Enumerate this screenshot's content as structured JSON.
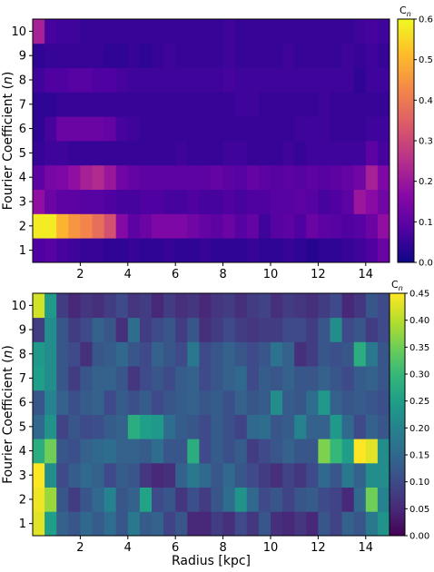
{
  "chart_data": [
    {
      "type": "heatmap",
      "title": "",
      "xlabel": "",
      "ylabel": "Fourier Coefficient (n)",
      "ylabel_parts": [
        "Fourier Coefficient (",
        "n",
        ")"
      ],
      "colorbar_label": "C",
      "colorbar_sub": "n",
      "colormap": "plasma",
      "xlim": [
        0,
        15
      ],
      "x_bin_width": 0.5,
      "x_tick_values": [
        2,
        4,
        6,
        8,
        10,
        12,
        14
      ],
      "x_tick_labels": [
        "2",
        "4",
        "6",
        "8",
        "10",
        "12",
        "14"
      ],
      "y_rows": [
        1,
        2,
        3,
        4,
        5,
        6,
        7,
        8,
        9,
        10
      ],
      "y_tick_labels": [
        "1",
        "2",
        "3",
        "4",
        "5",
        "6",
        "7",
        "8",
        "9",
        "10"
      ],
      "vmin": 0.0,
      "vmax": 0.6,
      "colorbar_ticks": [
        0.0,
        0.1,
        0.2,
        0.3,
        0.4,
        0.5,
        0.6
      ],
      "colorbar_tick_labels": [
        "0.0",
        "0.1",
        "0.2",
        "0.3",
        "0.4",
        "0.5",
        "0.6"
      ],
      "values": [
        [
          0.08,
          0.09,
          0.07,
          0.06,
          0.05,
          0.05,
          0.04,
          0.04,
          0.05,
          0.04,
          0.04,
          0.05,
          0.04,
          0.04,
          0.05,
          0.04,
          0.04,
          0.04,
          0.05,
          0.04,
          0.04,
          0.05,
          0.04,
          0.03,
          0.04,
          0.04,
          0.05,
          0.06,
          0.08,
          0.12
        ],
        [
          0.58,
          0.58,
          0.5,
          0.45,
          0.42,
          0.38,
          0.32,
          0.16,
          0.1,
          0.12,
          0.15,
          0.15,
          0.15,
          0.13,
          0.11,
          0.1,
          0.12,
          0.09,
          0.11,
          0.06,
          0.09,
          0.1,
          0.08,
          0.12,
          0.1,
          0.09,
          0.08,
          0.09,
          0.12,
          0.18
        ],
        [
          0.18,
          0.12,
          0.1,
          0.1,
          0.09,
          0.09,
          0.08,
          0.07,
          0.07,
          0.08,
          0.08,
          0.07,
          0.07,
          0.08,
          0.07,
          0.07,
          0.08,
          0.07,
          0.08,
          0.08,
          0.09,
          0.09,
          0.1,
          0.09,
          0.07,
          0.08,
          0.1,
          0.2,
          0.17,
          0.13
        ],
        [
          0.1,
          0.14,
          0.15,
          0.18,
          0.22,
          0.24,
          0.2,
          0.13,
          0.11,
          0.1,
          0.1,
          0.1,
          0.1,
          0.1,
          0.1,
          0.11,
          0.1,
          0.09,
          0.11,
          0.1,
          0.09,
          0.1,
          0.09,
          0.1,
          0.09,
          0.1,
          0.11,
          0.13,
          0.22,
          0.15
        ],
        [
          0.05,
          0.06,
          0.06,
          0.05,
          0.05,
          0.05,
          0.05,
          0.05,
          0.05,
          0.05,
          0.05,
          0.05,
          0.06,
          0.05,
          0.05,
          0.05,
          0.06,
          0.06,
          0.05,
          0.05,
          0.05,
          0.06,
          0.05,
          0.06,
          0.06,
          0.06,
          0.06,
          0.06,
          0.1,
          0.07
        ],
        [
          0.04,
          0.07,
          0.12,
          0.12,
          0.12,
          0.12,
          0.11,
          0.07,
          0.06,
          0.05,
          0.05,
          0.05,
          0.05,
          0.05,
          0.05,
          0.05,
          0.05,
          0.05,
          0.05,
          0.05,
          0.05,
          0.05,
          0.06,
          0.06,
          0.06,
          0.05,
          0.05,
          0.05,
          0.06,
          0.06
        ],
        [
          0.04,
          0.04,
          0.05,
          0.05,
          0.05,
          0.05,
          0.05,
          0.05,
          0.05,
          0.05,
          0.05,
          0.05,
          0.05,
          0.05,
          0.05,
          0.05,
          0.05,
          0.06,
          0.06,
          0.05,
          0.05,
          0.05,
          0.05,
          0.05,
          0.06,
          0.05,
          0.05,
          0.05,
          0.05,
          0.05
        ],
        [
          0.06,
          0.08,
          0.08,
          0.09,
          0.09,
          0.08,
          0.08,
          0.07,
          0.06,
          0.06,
          0.06,
          0.06,
          0.06,
          0.06,
          0.06,
          0.06,
          0.07,
          0.06,
          0.06,
          0.06,
          0.06,
          0.06,
          0.06,
          0.06,
          0.06,
          0.06,
          0.06,
          0.04,
          0.06,
          0.06
        ],
        [
          0.04,
          0.05,
          0.05,
          0.05,
          0.05,
          0.05,
          0.04,
          0.04,
          0.05,
          0.04,
          0.05,
          0.06,
          0.05,
          0.05,
          0.05,
          0.05,
          0.06,
          0.05,
          0.05,
          0.05,
          0.05,
          0.06,
          0.05,
          0.05,
          0.05,
          0.05,
          0.06,
          0.05,
          0.06,
          0.05
        ],
        [
          0.22,
          0.07,
          0.06,
          0.06,
          0.05,
          0.05,
          0.05,
          0.05,
          0.05,
          0.05,
          0.05,
          0.05,
          0.05,
          0.05,
          0.05,
          0.05,
          0.06,
          0.05,
          0.05,
          0.05,
          0.05,
          0.05,
          0.05,
          0.05,
          0.05,
          0.05,
          0.05,
          0.06,
          0.07,
          0.06
        ]
      ]
    },
    {
      "type": "heatmap",
      "title": "",
      "xlabel": "Radius [kpc]",
      "ylabel": "Fourier Coefficient (n)",
      "ylabel_parts": [
        "Fourier Coefficient (",
        "n",
        ")"
      ],
      "colorbar_label": "C",
      "colorbar_sub": "n",
      "colormap": "viridis",
      "xlim": [
        0,
        15
      ],
      "x_bin_width": 0.5,
      "x_tick_values": [
        2,
        4,
        6,
        8,
        10,
        12,
        14
      ],
      "x_tick_labels": [
        "2",
        "4",
        "6",
        "8",
        "10",
        "12",
        "14"
      ],
      "y_rows": [
        1,
        2,
        3,
        4,
        5,
        6,
        7,
        8,
        9,
        10
      ],
      "y_tick_labels": [
        "1",
        "2",
        "3",
        "4",
        "5",
        "6",
        "7",
        "8",
        "9",
        "10"
      ],
      "vmin": 0.0,
      "vmax": 0.45,
      "colorbar_ticks": [
        0.0,
        0.05,
        0.1,
        0.15,
        0.2,
        0.25,
        0.3,
        0.35,
        0.4,
        0.45
      ],
      "colorbar_tick_labels": [
        "0.00",
        "0.05",
        "0.10",
        "0.15",
        "0.20",
        "0.25",
        "0.30",
        "0.35",
        "0.40",
        "0.45"
      ],
      "values": [
        [
          0.43,
          0.25,
          0.14,
          0.12,
          0.15,
          0.13,
          0.16,
          0.12,
          0.18,
          0.13,
          0.14,
          0.09,
          0.12,
          0.05,
          0.05,
          0.08,
          0.06,
          0.1,
          0.07,
          0.12,
          0.06,
          0.05,
          0.07,
          0.05,
          0.12,
          0.09,
          0.14,
          0.12,
          0.18,
          0.23
        ],
        [
          0.44,
          0.38,
          0.12,
          0.08,
          0.12,
          0.15,
          0.2,
          0.12,
          0.14,
          0.26,
          0.1,
          0.12,
          0.07,
          0.11,
          0.08,
          0.12,
          0.16,
          0.23,
          0.15,
          0.1,
          0.12,
          0.09,
          0.12,
          0.13,
          0.1,
          0.09,
          0.05,
          0.15,
          0.35,
          0.2
        ],
        [
          0.45,
          0.22,
          0.1,
          0.13,
          0.15,
          0.14,
          0.1,
          0.13,
          0.12,
          0.07,
          0.05,
          0.06,
          0.14,
          0.18,
          0.15,
          0.12,
          0.15,
          0.12,
          0.1,
          0.08,
          0.06,
          0.09,
          0.07,
          0.1,
          0.15,
          0.12,
          0.18,
          0.14,
          0.22,
          0.22
        ],
        [
          0.28,
          0.35,
          0.12,
          0.11,
          0.14,
          0.15,
          0.16,
          0.14,
          0.14,
          0.13,
          0.16,
          0.12,
          0.12,
          0.28,
          0.1,
          0.13,
          0.11,
          0.13,
          0.08,
          0.1,
          0.12,
          0.14,
          0.12,
          0.12,
          0.36,
          0.3,
          0.25,
          0.45,
          0.43,
          0.22
        ],
        [
          0.15,
          0.23,
          0.09,
          0.12,
          0.1,
          0.11,
          0.13,
          0.14,
          0.28,
          0.25,
          0.24,
          0.16,
          0.13,
          0.12,
          0.1,
          0.13,
          0.11,
          0.09,
          0.15,
          0.16,
          0.12,
          0.13,
          0.2,
          0.14,
          0.14,
          0.24,
          0.15,
          0.1,
          0.14,
          0.12
        ],
        [
          0.12,
          0.2,
          0.14,
          0.11,
          0.13,
          0.14,
          0.1,
          0.13,
          0.11,
          0.13,
          0.1,
          0.12,
          0.13,
          0.14,
          0.12,
          0.13,
          0.11,
          0.14,
          0.12,
          0.13,
          0.22,
          0.13,
          0.12,
          0.16,
          0.24,
          0.14,
          0.12,
          0.13,
          0.12,
          0.11
        ],
        [
          0.25,
          0.22,
          0.12,
          0.08,
          0.12,
          0.14,
          0.14,
          0.12,
          0.07,
          0.1,
          0.12,
          0.1,
          0.13,
          0.14,
          0.1,
          0.12,
          0.14,
          0.15,
          0.1,
          0.13,
          0.12,
          0.14,
          0.12,
          0.12,
          0.14,
          0.12,
          0.1,
          0.13,
          0.14,
          0.12
        ],
        [
          0.24,
          0.22,
          0.12,
          0.1,
          0.06,
          0.12,
          0.13,
          0.15,
          0.12,
          0.1,
          0.14,
          0.12,
          0.1,
          0.18,
          0.1,
          0.12,
          0.14,
          0.12,
          0.1,
          0.12,
          0.17,
          0.14,
          0.06,
          0.08,
          0.12,
          0.11,
          0.12,
          0.28,
          0.18,
          0.12
        ],
        [
          0.08,
          0.22,
          0.12,
          0.08,
          0.1,
          0.14,
          0.12,
          0.06,
          0.16,
          0.08,
          0.1,
          0.12,
          0.08,
          0.12,
          0.06,
          0.08,
          0.1,
          0.08,
          0.07,
          0.08,
          0.08,
          0.1,
          0.1,
          0.08,
          0.12,
          0.22,
          0.1,
          0.12,
          0.08,
          0.1
        ],
        [
          0.42,
          0.24,
          0.08,
          0.05,
          0.07,
          0.06,
          0.08,
          0.1,
          0.07,
          0.08,
          0.05,
          0.08,
          0.06,
          0.07,
          0.05,
          0.07,
          0.08,
          0.06,
          0.08,
          0.09,
          0.06,
          0.08,
          0.07,
          0.06,
          0.08,
          0.1,
          0.05,
          0.07,
          0.12,
          0.1
        ]
      ]
    }
  ]
}
